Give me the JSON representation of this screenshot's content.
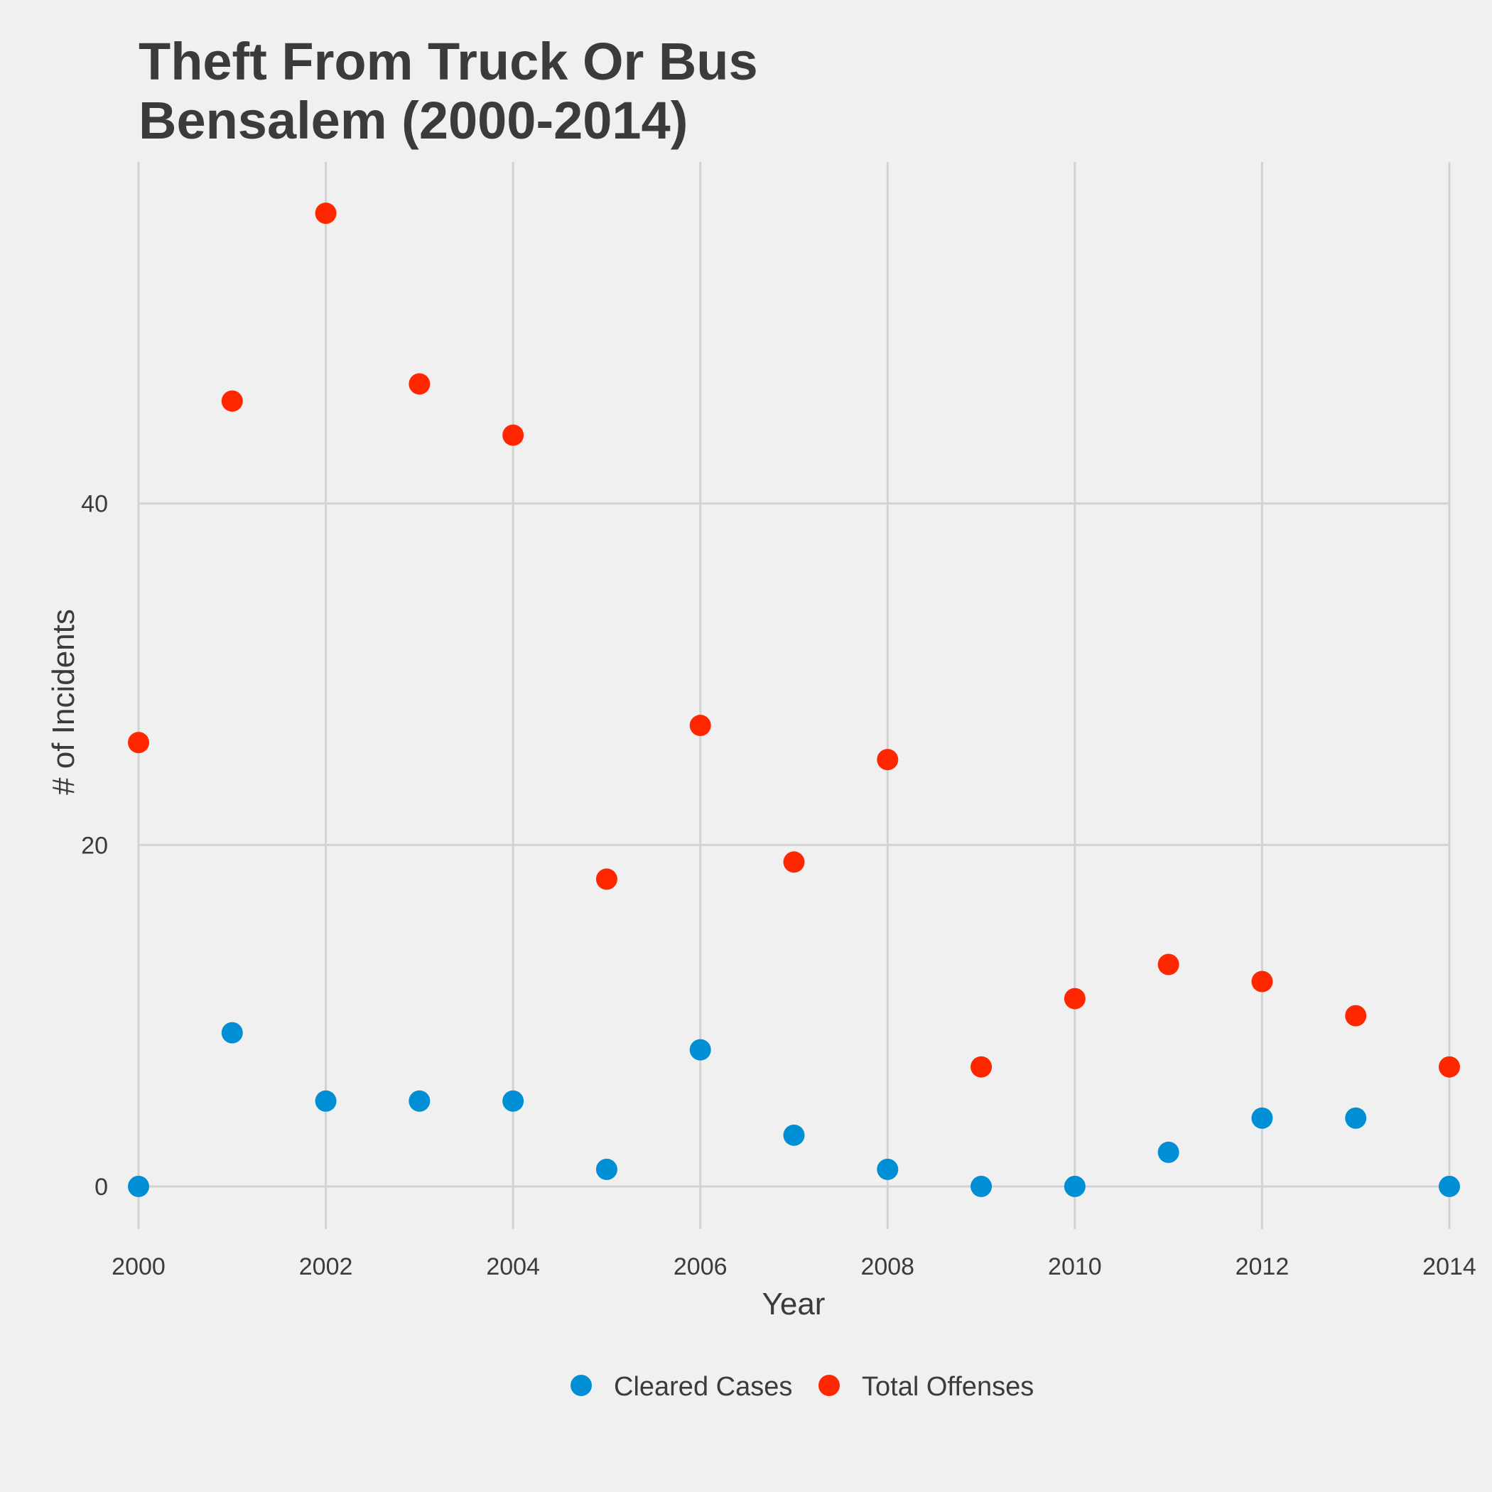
{
  "chart_data": {
    "type": "scatter",
    "title": [
      "Theft From Truck Or Bus",
      "Bensalem (2000-2014)"
    ],
    "xlabel": "Year",
    "ylabel": "# of Incidents",
    "xlim": [
      2000,
      2014
    ],
    "ylim": [
      -2.5,
      60
    ],
    "x_ticks": [
      2000,
      2002,
      2004,
      2006,
      2008,
      2010,
      2012,
      2014
    ],
    "y_ticks": [
      0,
      20,
      40
    ],
    "grid": true,
    "legend_position": "bottom",
    "x": [
      2000,
      2001,
      2002,
      2003,
      2004,
      2005,
      2006,
      2007,
      2008,
      2009,
      2010,
      2011,
      2012,
      2013,
      2014
    ],
    "series": [
      {
        "name": "Cleared Cases",
        "color": "#008fd5",
        "values": [
          0,
          9,
          5,
          5,
          5,
          1,
          8,
          3,
          1,
          0,
          0,
          2,
          4,
          4,
          0
        ]
      },
      {
        "name": "Total Offenses",
        "color": "#ff2700",
        "values": [
          26,
          46,
          57,
          47,
          44,
          18,
          27,
          19,
          25,
          7,
          11,
          13,
          12,
          10,
          7
        ]
      }
    ]
  }
}
